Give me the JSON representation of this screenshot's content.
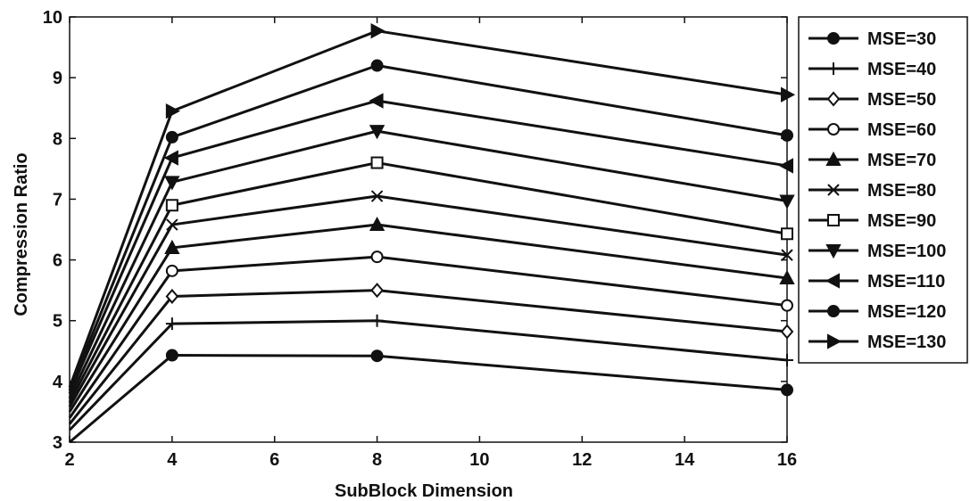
{
  "chart_data": {
    "type": "line",
    "title": "",
    "xlabel": "SubBlock Dimension",
    "ylabel": "Compression Ratio",
    "xlim": [
      2,
      16
    ],
    "ylim": [
      3,
      10
    ],
    "xticks": [
      2,
      4,
      6,
      8,
      10,
      12,
      14,
      16
    ],
    "yticks": [
      3,
      4,
      5,
      6,
      7,
      8,
      9,
      10
    ],
    "grid": false,
    "legend_position": "top-right, outside plot area",
    "x": [
      2,
      4,
      8,
      16
    ],
    "series": [
      {
        "name": "MSE=30",
        "marker": "filled-circle",
        "values": [
          3.0,
          4.43,
          4.42,
          3.86
        ]
      },
      {
        "name": "MSE=40",
        "marker": "plus",
        "values": [
          3.2,
          4.95,
          5.0,
          4.35
        ]
      },
      {
        "name": "MSE=50",
        "marker": "diamond",
        "values": [
          3.3,
          5.4,
          5.5,
          4.82
        ]
      },
      {
        "name": "MSE=60",
        "marker": "open-circle",
        "values": [
          3.4,
          5.82,
          6.05,
          5.25
        ]
      },
      {
        "name": "MSE=70",
        "marker": "triangle-up",
        "values": [
          3.5,
          6.2,
          6.58,
          5.7
        ]
      },
      {
        "name": "MSE=80",
        "marker": "x",
        "values": [
          3.58,
          6.58,
          7.05,
          6.08
        ]
      },
      {
        "name": "MSE=90",
        "marker": "square",
        "values": [
          3.65,
          6.9,
          7.6,
          6.43
        ]
      },
      {
        "name": "MSE=100",
        "marker": "triangle-down",
        "values": [
          3.72,
          7.28,
          8.12,
          6.97
        ]
      },
      {
        "name": "MSE=110",
        "marker": "triangle-left",
        "values": [
          3.8,
          7.68,
          8.62,
          7.55
        ]
      },
      {
        "name": "MSE=120",
        "marker": "filled-circle",
        "values": [
          3.85,
          8.02,
          9.2,
          8.05
        ]
      },
      {
        "name": "MSE=130",
        "marker": "triangle-right",
        "values": [
          3.9,
          8.45,
          9.77,
          8.72
        ]
      }
    ]
  }
}
